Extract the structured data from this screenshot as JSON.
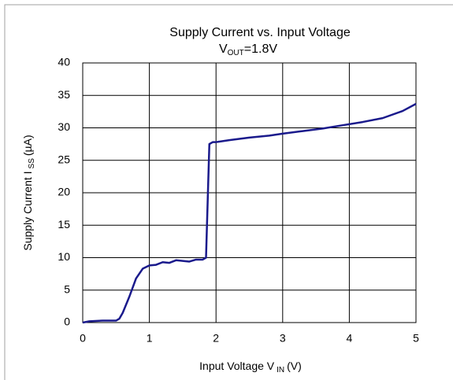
{
  "chart_data": {
    "type": "line",
    "title": "Supply Current vs. Input Voltage",
    "subtitle": [
      "V",
      "OUT",
      "=1.8V"
    ],
    "x_label": [
      "Input Voltage V",
      "IN",
      "(V)"
    ],
    "y_label": [
      "Supply Current I",
      "SS",
      "(µA)"
    ],
    "x": [
      0,
      0.1,
      0.3,
      0.5,
      0.55,
      0.6,
      0.7,
      0.8,
      0.9,
      1.0,
      1.1,
      1.2,
      1.3,
      1.4,
      1.5,
      1.6,
      1.7,
      1.8,
      1.85,
      1.9,
      1.95,
      2.0,
      2.2,
      2.5,
      2.8,
      3.0,
      3.3,
      3.6,
      3.9,
      4.2,
      4.5,
      4.8,
      5.0
    ],
    "series": [
      {
        "name": "Supply Current",
        "color": "#1a1a8c",
        "values": [
          0,
          0.2,
          0.3,
          0.3,
          0.6,
          1.5,
          4,
          6.8,
          8.3,
          8.8,
          8.9,
          9.3,
          9.2,
          9.6,
          9.5,
          9.4,
          9.7,
          9.7,
          10,
          27.5,
          27.8,
          27.8,
          28.1,
          28.5,
          28.8,
          29.1,
          29.5,
          29.9,
          30.4,
          30.9,
          31.5,
          32.6,
          33.7
        ]
      }
    ],
    "xlim": [
      0,
      5
    ],
    "xticks": [
      0,
      1,
      2,
      3,
      4,
      5
    ],
    "ylim": [
      0,
      40
    ],
    "yticks": [
      0,
      5,
      10,
      15,
      20,
      25,
      30,
      35,
      40
    ],
    "grid": true
  }
}
